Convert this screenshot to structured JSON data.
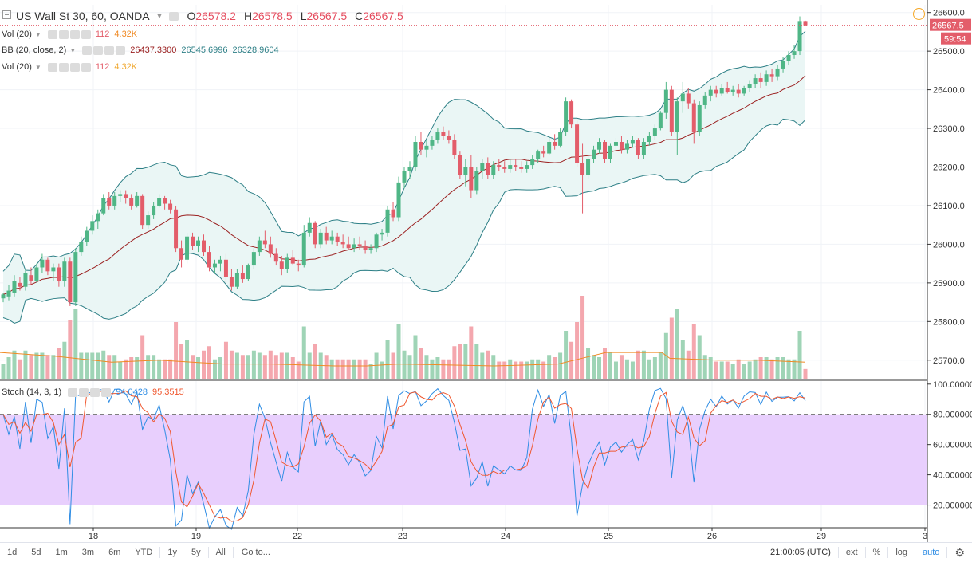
{
  "header": {
    "symbol": "US Wall St 30, 60, OANDA",
    "open_label": "O",
    "open": "26578.2",
    "high_label": "H",
    "high": "26578.5",
    "low_label": "L",
    "low": "26567.5",
    "close_label": "C",
    "close": "26567.5"
  },
  "legends": {
    "vol1": {
      "name": "Vol (20)",
      "v1": "112",
      "v2": "4.32K"
    },
    "bb": {
      "name": "BB (20, close, 2)",
      "v1": "26437.3300",
      "v2": "26545.6996",
      "v3": "26328.9604"
    },
    "vol2": {
      "name": "Vol (20)",
      "v1": "112",
      "v2": "4.32K"
    },
    "stoch": {
      "name": "Stoch (14, 3, 1)",
      "v1": "94.0428",
      "v2": "95.3515"
    }
  },
  "price_tag": {
    "last": "26567.5",
    "countdown": "59:54"
  },
  "toolbar": {
    "ranges": [
      "1d",
      "5d",
      "1m",
      "3m",
      "6m",
      "YTD",
      "1y",
      "5y",
      "All"
    ],
    "goto": "Go to...",
    "time": "21:00:05 (UTC)",
    "ext": "ext",
    "pct": "%",
    "log": "log",
    "auto": "auto"
  },
  "colors": {
    "up": "#4fb686",
    "down": "#e35d6a",
    "bb_band": "#2d7f86",
    "bb_basis": "#9b2020",
    "stoch_k": "#2f8de4",
    "stoch_d": "#f0582f",
    "vol_ma": "#f08a24",
    "stoch_bg": "#e8cffd"
  },
  "chart_data": [
    {
      "type": "candlestick",
      "y_axis": {
        "ticks": [
          25700,
          25800,
          25900,
          26000,
          26100,
          26200,
          26300,
          26400,
          26500,
          26600
        ],
        "range": [
          25650,
          26620
        ]
      },
      "x_axis": {
        "ticks": [
          "18",
          "19",
          "22",
          "23",
          "24",
          "25",
          "26",
          "29",
          "3"
        ]
      },
      "series": {
        "ohlc": [
          [
            25860,
            25875,
            25850,
            25870
          ],
          [
            25865,
            25895,
            25855,
            25880
          ],
          [
            25875,
            25920,
            25865,
            25905
          ],
          [
            25900,
            25915,
            25880,
            25890
          ],
          [
            25890,
            25935,
            25880,
            25925
          ],
          [
            25920,
            25940,
            25895,
            25905
          ],
          [
            25905,
            25950,
            25900,
            25940
          ],
          [
            25940,
            25975,
            25925,
            25960
          ],
          [
            25960,
            25965,
            25920,
            25930
          ],
          [
            25930,
            25950,
            25905,
            25940
          ],
          [
            25940,
            25950,
            25890,
            25905
          ],
          [
            25905,
            25965,
            25890,
            25955
          ],
          [
            25955,
            25965,
            25840,
            25850
          ],
          [
            25850,
            25990,
            25840,
            25980
          ],
          [
            25980,
            26020,
            25970,
            26005
          ],
          [
            26005,
            26045,
            25995,
            26035
          ],
          [
            26035,
            26075,
            26025,
            26060
          ],
          [
            26060,
            26090,
            26040,
            26080
          ],
          [
            26080,
            26130,
            26075,
            26120
          ],
          [
            26120,
            26135,
            26090,
            26100
          ],
          [
            26100,
            26135,
            26090,
            26125
          ],
          [
            26125,
            26140,
            26110,
            26130
          ],
          [
            26130,
            26140,
            26105,
            26120
          ],
          [
            26120,
            26130,
            26090,
            26100
          ],
          [
            26100,
            26135,
            26095,
            26125
          ],
          [
            26125,
            26130,
            26040,
            26050
          ],
          [
            26050,
            26085,
            26040,
            26075
          ],
          [
            26075,
            26110,
            26065,
            26100
          ],
          [
            26100,
            26130,
            26095,
            26120
          ],
          [
            26120,
            26125,
            26090,
            26105
          ],
          [
            26105,
            26115,
            26080,
            26090
          ],
          [
            26090,
            26100,
            25980,
            25990
          ],
          [
            25990,
            26010,
            25940,
            25960
          ],
          [
            25960,
            26030,
            25950,
            26020
          ],
          [
            26020,
            26030,
            25985,
            25995
          ],
          [
            25995,
            26020,
            25980,
            26010
          ],
          [
            26010,
            26025,
            25970,
            25980
          ],
          [
            25980,
            25995,
            25930,
            25940
          ],
          [
            25940,
            25960,
            25925,
            25950
          ],
          [
            25950,
            25970,
            25930,
            25960
          ],
          [
            25960,
            25975,
            25900,
            25915
          ],
          [
            25915,
            25935,
            25880,
            25890
          ],
          [
            25890,
            25935,
            25885,
            25925
          ],
          [
            25925,
            25945,
            25900,
            25910
          ],
          [
            25910,
            25950,
            25905,
            25945
          ],
          [
            25945,
            25990,
            25935,
            25980
          ],
          [
            25980,
            26020,
            25970,
            26010
          ],
          [
            26010,
            26035,
            25990,
            26000
          ],
          [
            26000,
            26020,
            25965,
            25975
          ],
          [
            25975,
            25990,
            25945,
            25955
          ],
          [
            25955,
            25970,
            25920,
            25935
          ],
          [
            25935,
            25975,
            25925,
            25965
          ],
          [
            25965,
            25985,
            25945,
            25950
          ],
          [
            25950,
            25960,
            25930,
            25945
          ],
          [
            25945,
            26050,
            25940,
            26030
          ],
          [
            26030,
            26070,
            26020,
            26055
          ],
          [
            26055,
            26060,
            25990,
            26000
          ],
          [
            26000,
            26040,
            25990,
            26030
          ],
          [
            26030,
            26045,
            26000,
            26010
          ],
          [
            26010,
            26035,
            26000,
            26020
          ],
          [
            26020,
            26030,
            25995,
            26005
          ],
          [
            26005,
            26025,
            25990,
            26000
          ],
          [
            26000,
            26020,
            25985,
            25990
          ],
          [
            25990,
            26015,
            25980,
            26000
          ],
          [
            26000,
            26020,
            25985,
            25995
          ],
          [
            25995,
            26010,
            25975,
            25985
          ],
          [
            25985,
            26000,
            25975,
            25990
          ],
          [
            25990,
            26030,
            25980,
            26025
          ],
          [
            26025,
            26040,
            26010,
            26030
          ],
          [
            26030,
            26100,
            26020,
            26090
          ],
          [
            26090,
            26110,
            26060,
            26070
          ],
          [
            26070,
            26175,
            26060,
            26160
          ],
          [
            26160,
            26200,
            26145,
            26190
          ],
          [
            26190,
            26215,
            26170,
            26200
          ],
          [
            26200,
            26280,
            26190,
            26265
          ],
          [
            26265,
            26290,
            26230,
            26245
          ],
          [
            26245,
            26270,
            26225,
            26255
          ],
          [
            26255,
            26280,
            26245,
            26270
          ],
          [
            26270,
            26300,
            26260,
            26290
          ],
          [
            26290,
            26305,
            26270,
            26280
          ],
          [
            26280,
            26295,
            26260,
            26270
          ],
          [
            26270,
            26285,
            26220,
            26230
          ],
          [
            26230,
            26240,
            26170,
            26180
          ],
          [
            26180,
            26220,
            26150,
            26200
          ],
          [
            26200,
            26230,
            26120,
            26140
          ],
          [
            26140,
            26200,
            26130,
            26190
          ],
          [
            26190,
            26220,
            26170,
            26210
          ],
          [
            26210,
            26225,
            26170,
            26180
          ],
          [
            26180,
            26215,
            26170,
            26205
          ],
          [
            26205,
            26220,
            26190,
            26200
          ],
          [
            26200,
            26215,
            26185,
            26195
          ],
          [
            26195,
            26220,
            26185,
            26205
          ],
          [
            26205,
            26220,
            26190,
            26200
          ],
          [
            26200,
            26215,
            26185,
            26195
          ],
          [
            26195,
            26215,
            26185,
            26205
          ],
          [
            26205,
            26230,
            26195,
            26220
          ],
          [
            26220,
            26245,
            26210,
            26240
          ],
          [
            26240,
            26255,
            26225,
            26235
          ],
          [
            26235,
            26275,
            26230,
            26265
          ],
          [
            26265,
            26285,
            26245,
            26255
          ],
          [
            26255,
            26300,
            26250,
            26290
          ],
          [
            26290,
            26380,
            26280,
            26370
          ],
          [
            26370,
            26375,
            26300,
            26310
          ],
          [
            26310,
            26320,
            26200,
            26210
          ],
          [
            26210,
            26260,
            26080,
            26180
          ],
          [
            26180,
            26230,
            26170,
            26220
          ],
          [
            26220,
            26255,
            26210,
            26245
          ],
          [
            26245,
            26275,
            26235,
            26265
          ],
          [
            26265,
            26270,
            26210,
            26220
          ],
          [
            26220,
            26260,
            26210,
            26255
          ],
          [
            26255,
            26275,
            26245,
            26265
          ],
          [
            26265,
            26280,
            26235,
            26245
          ],
          [
            26245,
            26270,
            26235,
            26260
          ],
          [
            26260,
            26280,
            26250,
            26270
          ],
          [
            26270,
            26275,
            26220,
            26230
          ],
          [
            26230,
            26275,
            26220,
            26265
          ],
          [
            26265,
            26290,
            26255,
            26280
          ],
          [
            26280,
            26310,
            26270,
            26300
          ],
          [
            26300,
            26345,
            26295,
            26340
          ],
          [
            26340,
            26420,
            26325,
            26400
          ],
          [
            26400,
            26410,
            26280,
            26290
          ],
          [
            26290,
            26380,
            26230,
            26370
          ],
          [
            26370,
            26420,
            26340,
            26390
          ],
          [
            26390,
            26405,
            26350,
            26365
          ],
          [
            26365,
            26375,
            26260,
            26290
          ],
          [
            26290,
            26370,
            26280,
            26360
          ],
          [
            26360,
            26395,
            26350,
            26385
          ],
          [
            26385,
            26410,
            26370,
            26400
          ],
          [
            26400,
            26410,
            26380,
            26390
          ],
          [
            26390,
            26415,
            26385,
            26405
          ],
          [
            26405,
            26420,
            26390,
            26395
          ],
          [
            26395,
            26410,
            26385,
            26400
          ],
          [
            26400,
            26415,
            26380,
            26390
          ],
          [
            26390,
            26410,
            26385,
            26405
          ],
          [
            26405,
            26425,
            26395,
            26415
          ],
          [
            26415,
            26440,
            26405,
            26430
          ],
          [
            26430,
            26445,
            26405,
            26420
          ],
          [
            26420,
            26450,
            26410,
            26440
          ],
          [
            26440,
            26455,
            26420,
            26435
          ],
          [
            26435,
            26465,
            26425,
            26455
          ],
          [
            26455,
            26485,
            26445,
            26475
          ],
          [
            26475,
            26500,
            26465,
            26490
          ],
          [
            26490,
            26515,
            26480,
            26500
          ],
          [
            26500,
            26590,
            26490,
            26578
          ],
          [
            26578,
            26579,
            26566,
            26567
          ]
        ],
        "vol_ma": [
          {
            "x": 0,
            "v": 25720
          },
          {
            "x": 70,
            "v": 25710
          },
          {
            "x": 140,
            "v": 25695
          },
          {
            "x": 200,
            "v": 25700
          },
          {
            "x": 280,
            "v": 25690
          },
          {
            "x": 340,
            "v": 25690
          },
          {
            "x": 420,
            "v": 25685
          },
          {
            "x": 460,
            "v": 25685
          },
          {
            "x": 500,
            "v": 25690
          },
          {
            "x": 620,
            "v": 25685
          },
          {
            "x": 700,
            "v": 25690
          },
          {
            "x": 740,
            "v": 25710
          },
          {
            "x": 760,
            "v": 25720
          },
          {
            "x": 830,
            "v": 25720
          },
          {
            "x": 840,
            "v": 25705
          },
          {
            "x": 900,
            "v": 25700
          },
          {
            "x": 950,
            "v": 25700
          },
          {
            "x": 1010,
            "v": 25695
          }
        ]
      }
    },
    {
      "type": "line",
      "name": "Stoch (14, 3, 1)",
      "y_axis": {
        "ticks": [
          20,
          40,
          60,
          80,
          100
        ],
        "range": [
          5,
          102
        ],
        "bands": [
          20,
          80
        ]
      },
      "series": [
        {
          "name": "%K"
        },
        {
          "name": "%D"
        }
      ]
    }
  ]
}
